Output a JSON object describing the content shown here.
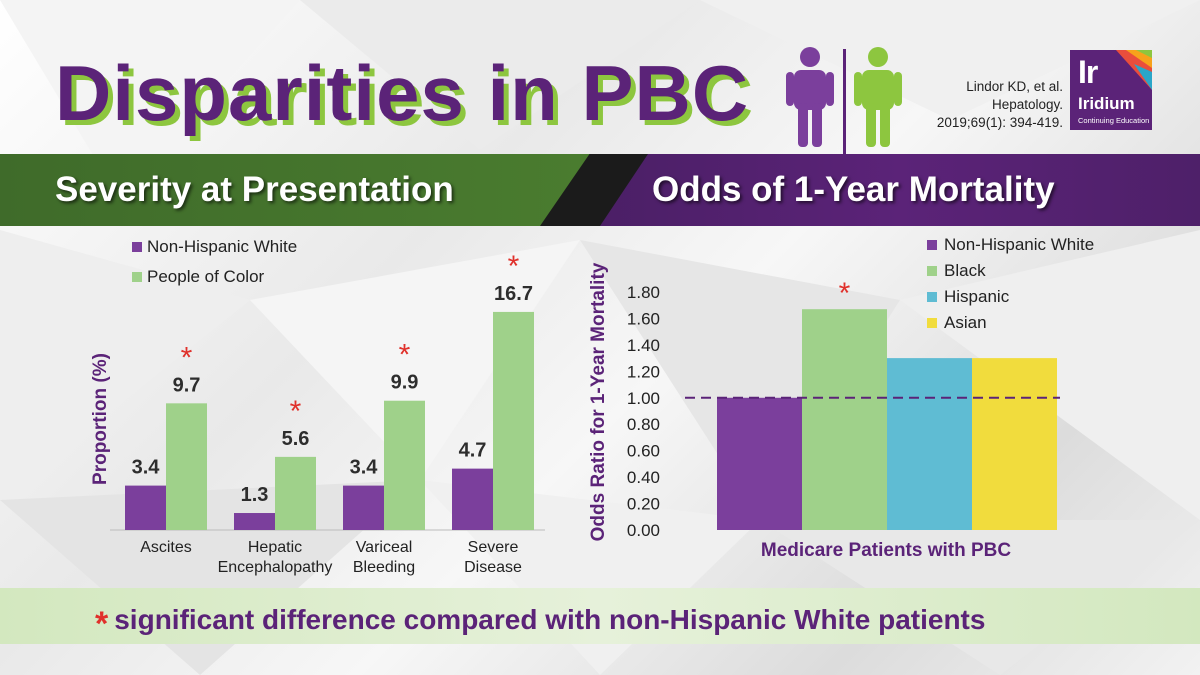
{
  "title": "Disparities in PBC",
  "citation": [
    "Lindor KD, et al.",
    "Hepatology.",
    "2019;69(1): 394-419."
  ],
  "logo": {
    "abbr": "Ir",
    "name": "Iridium",
    "subtitle": "Continuing Education"
  },
  "banner": {
    "left": "Severity at Presentation",
    "right": "Odds of 1-Year Mortality"
  },
  "colors": {
    "purple": "#7b3f9c",
    "green": "#9fd18a",
    "blue": "#5fbcd3",
    "yellow": "#f1dc3d",
    "star": "#e0312b",
    "title": "#5b2378"
  },
  "footnote": {
    "star": "*",
    "text": "significant difference compared with non-Hispanic White patients"
  },
  "chart_data": [
    {
      "type": "bar",
      "title": "Severity at Presentation",
      "ylabel": "Proportion (%)",
      "xlabel": "",
      "ylim": [
        0,
        17
      ],
      "categories": [
        [
          "Ascites"
        ],
        [
          "Hepatic",
          "Encephalopathy"
        ],
        [
          "Variceal",
          "Bleeding"
        ],
        [
          "Severe",
          "Disease"
        ]
      ],
      "series": [
        {
          "name": "Non-Hispanic White",
          "color": "#7b3f9c",
          "values": [
            3.4,
            1.3,
            3.4,
            4.7
          ],
          "labels": [
            "3.4",
            "1.3",
            "3.4",
            "4.7"
          ]
        },
        {
          "name": "People of Color",
          "color": "#9fd18a",
          "values": [
            9.7,
            5.6,
            9.9,
            16.7
          ],
          "labels": [
            "9.7",
            "5.6",
            "9.9",
            "16.7"
          ],
          "significant": [
            true,
            true,
            true,
            true
          ]
        }
      ],
      "legend": "top-left"
    },
    {
      "type": "bar",
      "title": "Odds of 1-Year Mortality",
      "ylabel": "Odds Ratio for 1-Year Mortality",
      "xlabel": "Medicare Patients with PBC",
      "ylim": [
        0,
        1.8
      ],
      "yticks": [
        "0.00",
        "0.20",
        "0.40",
        "0.60",
        "0.80",
        "1.00",
        "1.20",
        "1.40",
        "1.60",
        "1.80"
      ],
      "reference_line": 1.0,
      "series": [
        {
          "name": "Non-Hispanic White",
          "color": "#7b3f9c",
          "value": 1.0,
          "significant": false
        },
        {
          "name": "Black",
          "color": "#9fd18a",
          "value": 1.67,
          "significant": true
        },
        {
          "name": "Hispanic",
          "color": "#5fbcd3",
          "value": 1.3,
          "significant": false
        },
        {
          "name": "Asian",
          "color": "#f1dc3d",
          "value": 1.3,
          "significant": false
        }
      ],
      "legend": "top-right"
    }
  ]
}
